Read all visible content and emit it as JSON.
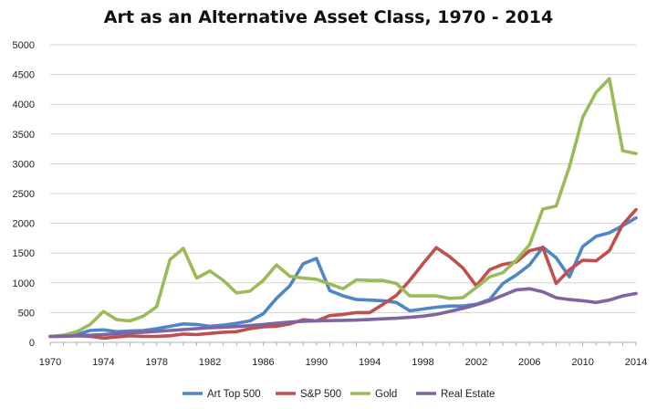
{
  "colors": {
    "axis": "#b0b0b0",
    "grid": "#d3d3d3",
    "text": "#222222"
  },
  "chart_data": {
    "type": "line",
    "title": "Art as an Alternative Asset Class, 1970 - 2014",
    "xlabel": "",
    "ylabel": "",
    "xlim": [
      1970,
      2014
    ],
    "ylim": [
      0,
      5000
    ],
    "x_ticks": [
      1970,
      1974,
      1978,
      1982,
      1986,
      1990,
      1994,
      1998,
      2002,
      2006,
      2010,
      2014
    ],
    "y_ticks": [
      0,
      500,
      1000,
      1500,
      2000,
      2500,
      3000,
      3500,
      4000,
      4500,
      5000
    ],
    "grid": "horizontal",
    "legend_position": "bottom",
    "x": [
      1970,
      1971,
      1972,
      1973,
      1974,
      1975,
      1976,
      1977,
      1978,
      1979,
      1980,
      1981,
      1982,
      1983,
      1984,
      1985,
      1986,
      1987,
      1988,
      1989,
      1990,
      1991,
      1992,
      1993,
      1994,
      1995,
      1996,
      1997,
      1998,
      1999,
      2000,
      2001,
      2002,
      2003,
      2004,
      2005,
      2006,
      2007,
      2008,
      2009,
      2010,
      2011,
      2012,
      2013,
      2014
    ],
    "series": [
      {
        "name": "Art Top 500",
        "color": "#4f86c6",
        "values": [
          100,
          110,
          130,
          200,
          210,
          180,
          190,
          200,
          230,
          270,
          310,
          300,
          270,
          290,
          320,
          360,
          480,
          740,
          950,
          1320,
          1410,
          870,
          780,
          720,
          710,
          700,
          670,
          530,
          560,
          590,
          610,
          610,
          640,
          720,
          990,
          1130,
          1300,
          1600,
          1420,
          1100,
          1610,
          1780,
          1840,
          1960,
          2090
        ]
      },
      {
        "name": "S&P 500",
        "color": "#c0504d",
        "values": [
          100,
          100,
          110,
          100,
          70,
          90,
          110,
          100,
          100,
          110,
          140,
          130,
          150,
          170,
          180,
          230,
          260,
          270,
          310,
          380,
          360,
          450,
          470,
          500,
          500,
          640,
          790,
          1040,
          1320,
          1590,
          1440,
          1250,
          950,
          1220,
          1310,
          1350,
          1540,
          1590,
          990,
          1220,
          1380,
          1370,
          1540,
          1980,
          2230
        ]
      },
      {
        "name": "Gold",
        "color": "#9bbb59",
        "values": [
          100,
          120,
          180,
          300,
          520,
          380,
          360,
          440,
          600,
          1390,
          1580,
          1080,
          1200,
          1040,
          830,
          860,
          1040,
          1300,
          1110,
          1080,
          1060,
          980,
          900,
          1050,
          1040,
          1040,
          990,
          780,
          780,
          780,
          740,
          750,
          920,
          1100,
          1170,
          1380,
          1640,
          2240,
          2290,
          2950,
          3780,
          4200,
          4430,
          3220,
          3170
        ]
      },
      {
        "name": "Real Estate",
        "color": "#8064a2",
        "values": [
          100,
          105,
          110,
          120,
          130,
          145,
          160,
          170,
          185,
          200,
          215,
          230,
          245,
          255,
          265,
          280,
          300,
          320,
          340,
          355,
          360,
          365,
          370,
          375,
          385,
          395,
          405,
          420,
          440,
          470,
          520,
          570,
          630,
          700,
          790,
          880,
          900,
          850,
          750,
          720,
          700,
          670,
          710,
          780,
          820
        ]
      }
    ]
  }
}
